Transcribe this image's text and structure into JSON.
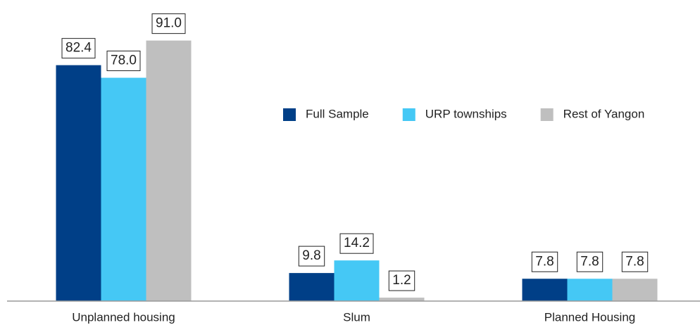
{
  "chart_data": {
    "type": "bar",
    "categories": [
      "Unplanned housing",
      "Slum",
      "Planned Housing"
    ],
    "series": [
      {
        "name": "Full Sample",
        "color": "#003f87",
        "values": [
          82.4,
          9.8,
          7.8
        ],
        "value_labels": [
          "82.4",
          "9.8",
          "7.8"
        ]
      },
      {
        "name": "URP townships",
        "color": "#45c8f5",
        "values": [
          78.0,
          14.2,
          7.8
        ],
        "value_labels": [
          "78.0",
          "14.2",
          "7.8"
        ]
      },
      {
        "name": "Rest of Yangon",
        "color": "#bfbfbf",
        "values": [
          91.0,
          1.2,
          7.8
        ],
        "value_labels": [
          "91.0",
          "1.2",
          "7.8"
        ]
      }
    ],
    "ylim": [
      0,
      100
    ],
    "legend": "right"
  }
}
